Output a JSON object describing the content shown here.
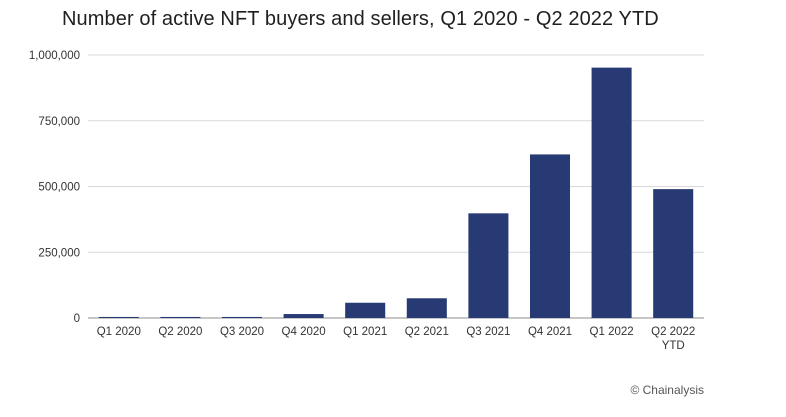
{
  "title": "Number of active NFT buyers and sellers, Q1 2020 - Q2 2022 YTD",
  "source": "© Chainalysis",
  "colors": {
    "bar": "#283A73"
  },
  "chart_data": {
    "type": "bar",
    "title": "Number of active NFT buyers and sellers, Q1 2020 - Q2 2022 YTD",
    "xlabel": "",
    "ylabel": "",
    "categories": [
      "Q1 2020",
      "Q2 2020",
      "Q3 2020",
      "Q4 2020",
      "Q1 2021",
      "Q2 2021",
      "Q3 2021",
      "Q4 2021",
      "Q1 2022",
      "Q2 2022 YTD"
    ],
    "category_lines": [
      [
        "Q1 2020"
      ],
      [
        "Q2 2020"
      ],
      [
        "Q3 2020"
      ],
      [
        "Q4 2020"
      ],
      [
        "Q1 2021"
      ],
      [
        "Q2 2021"
      ],
      [
        "Q3 2021"
      ],
      [
        "Q4 2021"
      ],
      [
        "Q1 2022"
      ],
      [
        "Q2 2022",
        "YTD"
      ]
    ],
    "values": [
      4000,
      4000,
      4000,
      15000,
      58000,
      75000,
      398000,
      622000,
      952000,
      490000
    ],
    "ylim": [
      0,
      1000000
    ],
    "yticks": [
      0,
      250000,
      500000,
      750000,
      1000000
    ],
    "ytick_labels": [
      "0",
      "250,000",
      "500,000",
      "750,000",
      "1,000,000"
    ],
    "grid": true,
    "legend": "none"
  }
}
